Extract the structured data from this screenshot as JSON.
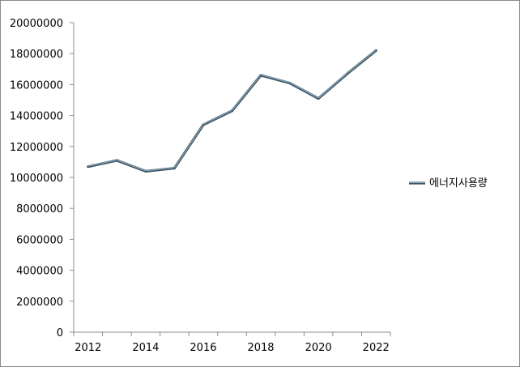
{
  "chart_data": {
    "type": "line",
    "x": [
      2012,
      2013,
      2014,
      2015,
      2016,
      2017,
      2018,
      2019,
      2020,
      2021,
      2022
    ],
    "series": [
      {
        "name": "에너지사용량",
        "color": "#5f7f96",
        "values": [
          10700000,
          11100000,
          10400000,
          10600000,
          13400000,
          14300000,
          16600000,
          16100000,
          15100000,
          16700000,
          18200000
        ]
      }
    ],
    "ylim": [
      0,
      20000000
    ],
    "yticks": [
      "0",
      "2000000",
      "4000000",
      "6000000",
      "8000000",
      "10000000",
      "12000000",
      "14000000",
      "16000000",
      "18000000",
      "20000000"
    ],
    "xticks": [
      "2012",
      "2014",
      "2016",
      "2018",
      "2020",
      "2022"
    ],
    "legend_position": "right",
    "grid": false
  }
}
